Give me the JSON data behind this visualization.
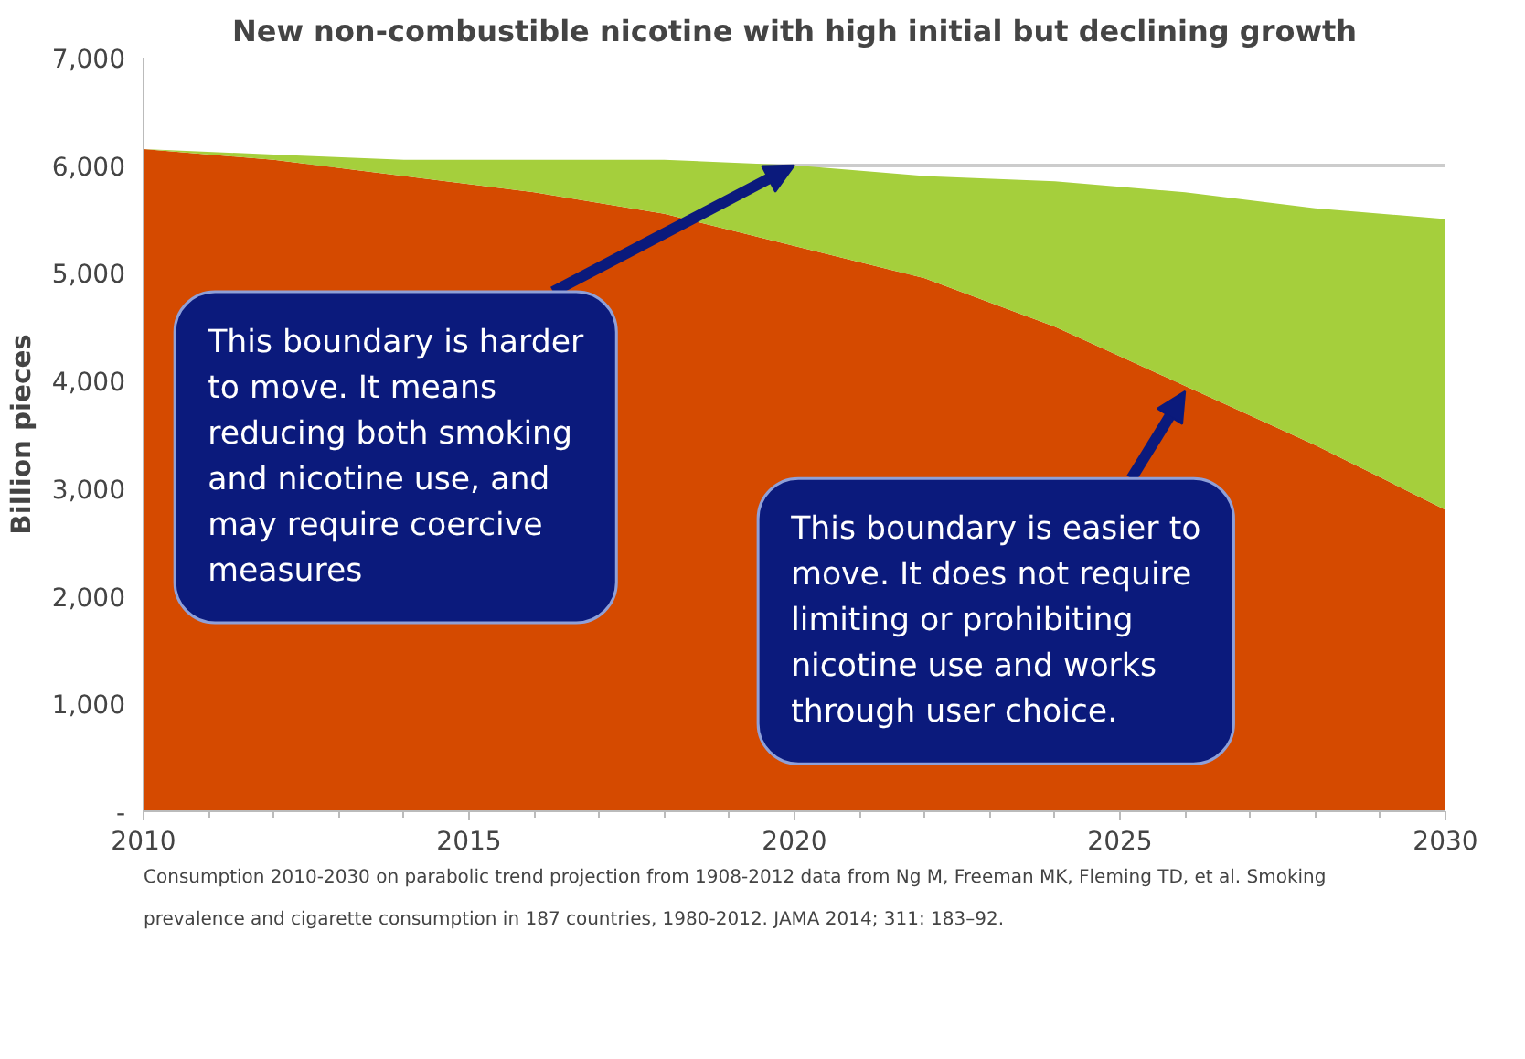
{
  "chart_data": {
    "type": "area",
    "stacked": true,
    "title": "New non-combustible nicotine with high initial but declining growth",
    "ylabel": "Billion pieces",
    "x": [
      2010,
      2012,
      2014,
      2016,
      2018,
      2020,
      2022,
      2024,
      2026,
      2028,
      2030
    ],
    "series": [
      {
        "color": "#d54a00",
        "values": [
          6150,
          6050,
          5900,
          5750,
          5550,
          5250,
          4950,
          4500,
          3950,
          3400,
          2800
        ]
      },
      {
        "color": "#a5cf3c",
        "values": [
          0,
          50,
          150,
          300,
          500,
          750,
          950,
          1350,
          1800,
          2200,
          2700
        ]
      }
    ],
    "xlim": [
      2010,
      2030
    ],
    "xticks": [
      2010,
      2015,
      2020,
      2025,
      2030
    ],
    "ylim": [
      0,
      7000
    ],
    "yticks": [
      {
        "value": 0,
        "label": "-"
      },
      {
        "value": 1000,
        "label": "1,000"
      },
      {
        "value": 2000,
        "label": "2,000"
      },
      {
        "value": 3000,
        "label": "3,000"
      },
      {
        "value": 4000,
        "label": "4,000"
      },
      {
        "value": 5000,
        "label": "5,000"
      },
      {
        "value": 6000,
        "label": "6,000"
      },
      {
        "value": 7000,
        "label": "7,000"
      }
    ],
    "grid": "y",
    "annotations": [
      {
        "text": "This boundary is harder to move.  It means reducing both smoking and nicotine use, and may require coercive measures",
        "x": 2020,
        "y": 6000
      },
      {
        "text": "This boundary is easier to move. It does not require limiting or prohibiting nicotine use and works through user choice.",
        "x": 2026,
        "y": 3900
      },
      "Consumption 2010-2030 on parabolic trend projection from 1908-2012 data from Ng M, Freeman MK, Fleming TD, et al. Smoking prevalence and cigarette consumption in 187 countries, 1980-2012. JAMA 2014; 311: 183–92."
    ]
  }
}
